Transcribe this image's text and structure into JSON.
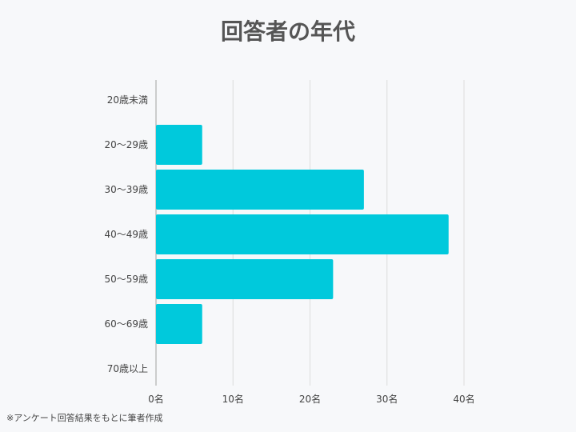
{
  "chart_data": {
    "type": "bar",
    "orientation": "horizontal",
    "title": "回答者の年代",
    "categories": [
      "20歳未満",
      "20～29歳",
      "30～39歳",
      "40～49歳",
      "50～59歳",
      "60～69歳",
      "70歳以上"
    ],
    "values": [
      0,
      6,
      27,
      38,
      23,
      6,
      0
    ],
    "xlim": [
      0,
      40
    ],
    "xticks": [
      "0名",
      "10名",
      "20名",
      "30名",
      "40名"
    ],
    "grid": true,
    "bar_color": "#00c9dc"
  },
  "footnote": "※アンケート回答結果をもとに筆者作成"
}
